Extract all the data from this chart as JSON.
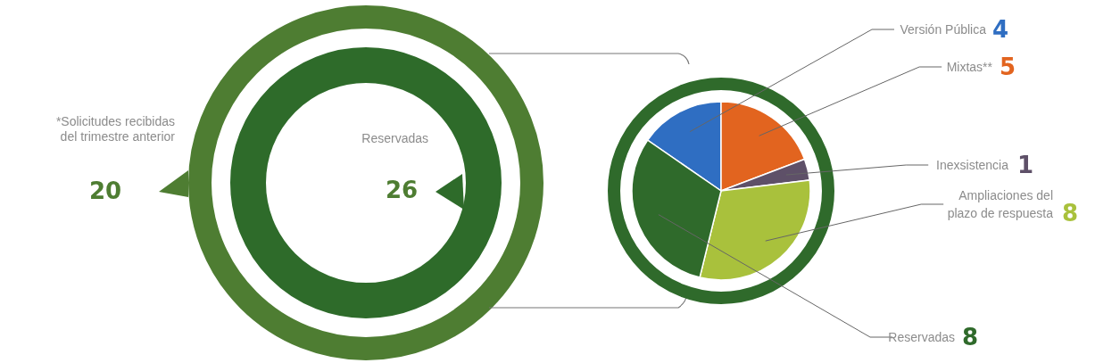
{
  "chart_data": [
    {
      "type": "other",
      "annotations": [
        "*Solicitudes recibidas del trimestre anterior",
        "20",
        "Reservadas",
        "26"
      ],
      "colors": [
        "#4e7d32",
        "#2e6b2a"
      ]
    },
    {
      "type": "pie",
      "categories": [
        "Versión Pública",
        "Mixtas**",
        "Inexsistencia",
        "Ampliaciones del plazo de respuesta",
        "Reservadas"
      ],
      "values": [
        4,
        5,
        1,
        8,
        8
      ],
      "colors": [
        "#2f6ec2",
        "#e2641f",
        "#5e5068",
        "#a9c13c",
        "#2f6a2b"
      ],
      "value_labels": [
        "4",
        "5",
        "1",
        "8",
        "8"
      ]
    }
  ]
}
